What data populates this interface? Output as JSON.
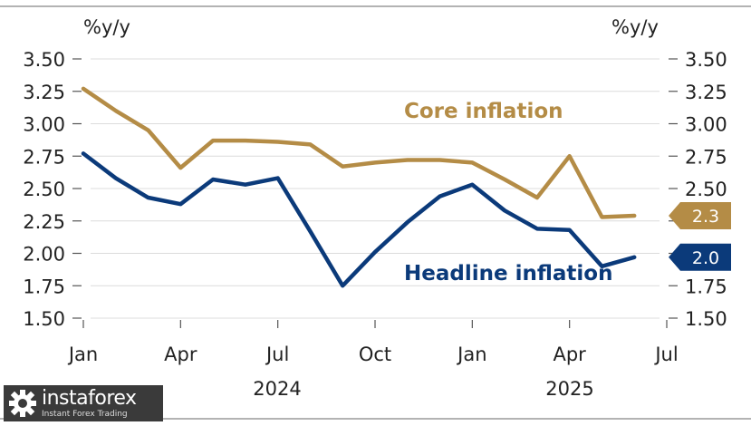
{
  "chart_data": {
    "type": "line",
    "left_unit": "%y/y",
    "right_unit": "%y/y",
    "y_ticks": [
      "3.50",
      "3.25",
      "3.00",
      "2.75",
      "2.50",
      "2.25",
      "2.00",
      "1.75",
      "1.50"
    ],
    "y_tick_values": [
      3.5,
      3.25,
      3.0,
      2.75,
      2.5,
      2.25,
      2.0,
      1.75,
      1.5
    ],
    "ylim": [
      1.5,
      3.5
    ],
    "x_ticks": [
      "Jan",
      "Apr",
      "Jul",
      "Oct",
      "Jan",
      "Apr",
      "Jul"
    ],
    "year_labels": [
      "2024",
      "2025"
    ],
    "x": [
      "2024-01",
      "2024-02",
      "2024-03",
      "2024-04",
      "2024-05",
      "2024-06",
      "2024-07",
      "2024-08",
      "2024-09",
      "2024-10",
      "2024-11",
      "2024-12",
      "2025-01",
      "2025-02",
      "2025-03",
      "2025-04",
      "2025-05",
      "2025-06"
    ],
    "xlim": [
      "2024-01",
      "2025-07"
    ],
    "x_tick_dates": [
      "2024-01",
      "2024-04",
      "2024-07",
      "2024-10",
      "2025-01",
      "2025-04",
      "2025-07"
    ],
    "series": [
      {
        "name": "Core inflation",
        "color": "#b48c46",
        "values": [
          3.27,
          3.1,
          2.95,
          2.66,
          2.87,
          2.87,
          2.86,
          2.84,
          2.67,
          2.7,
          2.72,
          2.72,
          2.7,
          2.57,
          2.43,
          2.75,
          2.28,
          2.29
        ],
        "end_label": "2.3"
      },
      {
        "name": "Headline inflation",
        "color": "#0b3a7a",
        "values": [
          2.77,
          2.58,
          2.43,
          2.38,
          2.57,
          2.53,
          2.58,
          2.17,
          1.75,
          2.01,
          2.24,
          2.44,
          2.53,
          2.33,
          2.19,
          2.18,
          1.9,
          1.97
        ],
        "end_label": "2.0"
      }
    ],
    "grid": true
  },
  "brand": {
    "name": "instaforex",
    "tagline": "Instant Forex Trading"
  }
}
